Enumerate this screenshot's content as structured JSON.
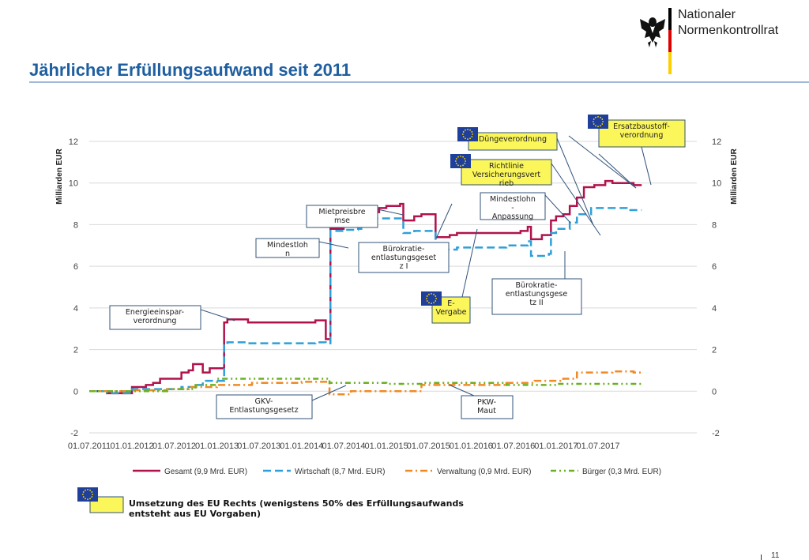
{
  "header": {
    "title": "Jährlicher Erfüllungsaufwand seit 2011",
    "logo_line1": "Nationaler",
    "logo_line2": "Normenkontrollrat",
    "logo_colors": [
      "#000000",
      "#dd0000",
      "#ffce00"
    ]
  },
  "chart_data": {
    "type": "line",
    "ylabel_left": "Milliarden EUR",
    "ylabel_right": "Milliarden EUR",
    "ylim": [
      -2,
      12
    ],
    "y_ticks": [
      -2,
      0,
      2,
      4,
      6,
      8,
      10,
      12
    ],
    "x_ticks": [
      "01.07.2011",
      "01.01.2012",
      "01.07.2012",
      "01.01.2013",
      "01.07.2013",
      "01.01.2014",
      "01.07.2014",
      "01.01.2015",
      "01.07.2015",
      "01.01.2016",
      "01.07.2016",
      "01.01.2017",
      "01.07.2017"
    ],
    "grid": true,
    "legend_position": "bottom",
    "series": [
      {
        "name": "Gesamt (9,9 Mrd. EUR)",
        "color": "#b0124b",
        "style": "solid",
        "points": [
          [
            "2011-07-01",
            0
          ],
          [
            "2011-09-01",
            0
          ],
          [
            "2011-09-15",
            -0.1
          ],
          [
            "2011-12-20",
            -0.1
          ],
          [
            "2012-01-01",
            0.2
          ],
          [
            "2012-03-01",
            0.3
          ],
          [
            "2012-04-01",
            0.4
          ],
          [
            "2012-05-01",
            0.6
          ],
          [
            "2012-07-20",
            0.6
          ],
          [
            "2012-08-01",
            0.9
          ],
          [
            "2012-09-01",
            1.0
          ],
          [
            "2012-09-20",
            1.3
          ],
          [
            "2012-10-20",
            1.3
          ],
          [
            "2012-11-01",
            0.9
          ],
          [
            "2012-12-01",
            1.1
          ],
          [
            "2013-01-15",
            1.1
          ],
          [
            "2013-02-01",
            3.3
          ],
          [
            "2013-02-15",
            3.45
          ],
          [
            "2013-05-01",
            3.45
          ],
          [
            "2013-05-15",
            3.3
          ],
          [
            "2014-03-01",
            3.4
          ],
          [
            "2014-04-01",
            3.4
          ],
          [
            "2014-04-15",
            2.5
          ],
          [
            "2014-04-25",
            2.5
          ],
          [
            "2014-05-05",
            7.8
          ],
          [
            "2014-07-01",
            7.9
          ],
          [
            "2014-09-01",
            8.0
          ],
          [
            "2014-09-15",
            8.3
          ],
          [
            "2014-10-01",
            8.6
          ],
          [
            "2014-12-01",
            8.8
          ],
          [
            "2015-01-01",
            8.9
          ],
          [
            "2015-03-01",
            9.0
          ],
          [
            "2015-03-15",
            8.2
          ],
          [
            "2015-05-01",
            8.4
          ],
          [
            "2015-06-01",
            8.5
          ],
          [
            "2015-07-20",
            8.5
          ],
          [
            "2015-08-01",
            7.4
          ],
          [
            "2015-10-01",
            7.5
          ],
          [
            "2015-11-01",
            7.6
          ],
          [
            "2016-08-01",
            7.7
          ],
          [
            "2016-09-01",
            7.9
          ],
          [
            "2016-09-15",
            7.3
          ],
          [
            "2016-11-01",
            7.5
          ],
          [
            "2016-12-01",
            7.5
          ],
          [
            "2016-12-10",
            8.2
          ],
          [
            "2017-01-01",
            8.4
          ],
          [
            "2017-02-01",
            8.5
          ],
          [
            "2017-03-01",
            8.9
          ],
          [
            "2017-04-01",
            9.3
          ],
          [
            "2017-05-01",
            9.8
          ],
          [
            "2017-06-15",
            9.9
          ],
          [
            "2017-08-01",
            10.1
          ],
          [
            "2017-09-01",
            10.0
          ],
          [
            "2017-11-01",
            10.0
          ],
          [
            "2017-12-01",
            9.9
          ],
          [
            "2018-01-05",
            9.9
          ]
        ]
      },
      {
        "name": "Wirtschaft (8,7 Mrd. EUR)",
        "color": "#2e9fd8",
        "style": "dashed",
        "points": [
          [
            "2011-07-01",
            0
          ],
          [
            "2011-09-15",
            -0.1
          ],
          [
            "2011-12-20",
            -0.1
          ],
          [
            "2012-01-01",
            0.1
          ],
          [
            "2012-05-01",
            0.1
          ],
          [
            "2012-08-01",
            0.2
          ],
          [
            "2012-10-01",
            0.3
          ],
          [
            "2012-11-01",
            0.5
          ],
          [
            "2013-01-15",
            0.5
          ],
          [
            "2013-02-01",
            2.2
          ],
          [
            "2013-02-15",
            2.35
          ],
          [
            "2013-05-01",
            2.35
          ],
          [
            "2013-05-15",
            2.3
          ],
          [
            "2014-03-01",
            2.35
          ],
          [
            "2014-04-15",
            2.3
          ],
          [
            "2014-05-05",
            7.7
          ],
          [
            "2014-07-01",
            7.75
          ],
          [
            "2014-09-01",
            7.8
          ],
          [
            "2014-09-15",
            8.0
          ],
          [
            "2014-10-01",
            8.3
          ],
          [
            "2015-03-01",
            8.3
          ],
          [
            "2015-03-15",
            7.6
          ],
          [
            "2015-05-01",
            7.7
          ],
          [
            "2015-07-20",
            7.7
          ],
          [
            "2015-08-01",
            6.8
          ],
          [
            "2015-11-01",
            6.9
          ],
          [
            "2016-06-01",
            7.0
          ],
          [
            "2016-09-01",
            7.2
          ],
          [
            "2016-09-15",
            6.5
          ],
          [
            "2016-12-01",
            6.6
          ],
          [
            "2016-12-10",
            7.6
          ],
          [
            "2017-01-01",
            7.8
          ],
          [
            "2017-03-01",
            8.1
          ],
          [
            "2017-04-01",
            8.5
          ],
          [
            "2017-06-01",
            8.8
          ],
          [
            "2017-09-01",
            8.8
          ],
          [
            "2017-11-01",
            8.7
          ],
          [
            "2018-01-05",
            8.7
          ]
        ]
      },
      {
        "name": "Verwaltung (0,9 Mrd. EUR)",
        "color": "#f08a24",
        "style": "dashdot",
        "points": [
          [
            "2011-07-01",
            0
          ],
          [
            "2012-01-01",
            0.05
          ],
          [
            "2012-06-01",
            0.1
          ],
          [
            "2012-09-01",
            0.2
          ],
          [
            "2013-01-01",
            0.3
          ],
          [
            "2013-06-01",
            0.4
          ],
          [
            "2014-01-01",
            0.45
          ],
          [
            "2014-04-20",
            0.45
          ],
          [
            "2014-05-01",
            -0.15
          ],
          [
            "2014-08-01",
            0
          ],
          [
            "2015-03-01",
            0
          ],
          [
            "2015-06-01",
            0.3
          ],
          [
            "2016-03-01",
            0.3
          ],
          [
            "2016-06-01",
            0.4
          ],
          [
            "2016-10-01",
            0.5
          ],
          [
            "2017-02-01",
            0.6
          ],
          [
            "2017-04-01",
            0.9
          ],
          [
            "2017-09-01",
            0.95
          ],
          [
            "2017-12-01",
            0.9
          ],
          [
            "2018-01-05",
            0.9
          ]
        ]
      },
      {
        "name": "Bürger (0,3 Mrd. EUR)",
        "color": "#6ab023",
        "style": "dashdot2",
        "points": [
          [
            "2011-07-01",
            0
          ],
          [
            "2012-01-01",
            0
          ],
          [
            "2012-06-01",
            0.1
          ],
          [
            "2012-10-01",
            0.3
          ],
          [
            "2013-01-01",
            0.6
          ],
          [
            "2013-06-01",
            0.6
          ],
          [
            "2014-03-01",
            0.6
          ],
          [
            "2014-05-01",
            0.4
          ],
          [
            "2015-01-01",
            0.35
          ],
          [
            "2015-06-01",
            0.4
          ],
          [
            "2016-06-01",
            0.3
          ],
          [
            "2017-01-01",
            0.35
          ],
          [
            "2017-06-01",
            0.35
          ],
          [
            "2018-01-05",
            0.35
          ]
        ]
      }
    ],
    "annotations": [
      {
        "text": "Energieeinspar-verordnung",
        "lines": [
          "Energieeinspar-",
          "verordnung"
        ],
        "eu": false
      },
      {
        "text": "GKV-Entlastungsgesetz",
        "lines": [
          "GKV-",
          "Entlastungsgesetz"
        ],
        "eu": false
      },
      {
        "text": "Mindestlohn",
        "lines": [
          "Mindestloh",
          "n"
        ],
        "eu": false
      },
      {
        "text": "Mietpreisbremse",
        "lines": [
          "Mietpreisbre",
          "mse"
        ],
        "eu": false
      },
      {
        "text": "Bürokratie-entlastungsgesetz I",
        "lines": [
          "Bürokratie-",
          "entlastungsgeset",
          "z I"
        ],
        "eu": false
      },
      {
        "text": "E-Vergabe",
        "lines": [
          "E-",
          "Vergabe"
        ],
        "eu": true
      },
      {
        "text": "PKW-Maut",
        "lines": [
          "PKW-",
          "Maut"
        ],
        "eu": false
      },
      {
        "text": "Düngeverordnung",
        "lines": [
          "Düngeverordnung"
        ],
        "eu": true
      },
      {
        "text": "Richtlinie Versicherungsvertrieb",
        "lines": [
          "Richtlinie",
          "Versicherungsvert",
          "rieb"
        ],
        "eu": true
      },
      {
        "text": "Mindestlohn-Anpassung",
        "lines": [
          "Mindestlohn",
          "-",
          "Anpassung"
        ],
        "eu": false
      },
      {
        "text": "Bürokratie-entlastungsgesetz II",
        "lines": [
          "Bürokratie-",
          "entlastungsgese",
          "tz II"
        ],
        "eu": false
      },
      {
        "text": "Ersatzbaustoff-verordnung",
        "lines": [
          "Ersatzbaustoff-",
          "verordnung"
        ],
        "eu": true
      }
    ]
  },
  "legend_note": {
    "text": "Umsetzung des EU Rechts (wenigstens 50% des Erfüllungsaufwands entsteht aus EU Vorgaben)"
  },
  "page_number": "11"
}
